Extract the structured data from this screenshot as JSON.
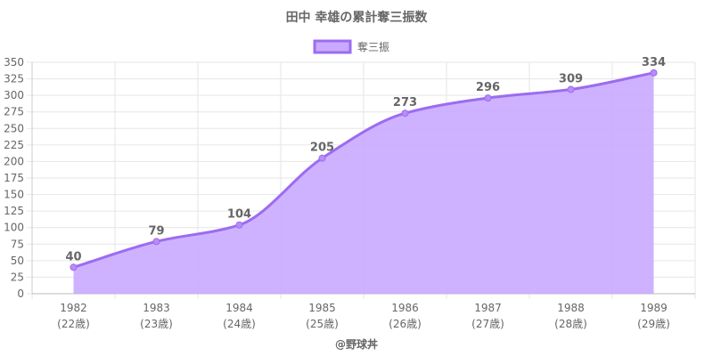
{
  "chart_data": {
    "type": "area",
    "title": "田中 幸雄の累計奪三振数",
    "legend": {
      "label": "奪三振",
      "placement": "top"
    },
    "categories": [
      "1982",
      "1983",
      "1984",
      "1985",
      "1986",
      "1987",
      "1988",
      "1989"
    ],
    "sublabels": [
      "(22歳)",
      "(23歳)",
      "(24歳)",
      "(25歳)",
      "(26歳)",
      "(27歳)",
      "(28歳)",
      "(29歳)"
    ],
    "series": [
      {
        "name": "奪三振",
        "values": [
          40,
          79,
          104,
          205,
          273,
          296,
          309,
          334
        ]
      }
    ],
    "ylim": [
      0,
      350
    ],
    "yticks": [
      0,
      25,
      50,
      75,
      100,
      125,
      150,
      175,
      200,
      225,
      250,
      275,
      300,
      325,
      350
    ],
    "grid": true,
    "colors": {
      "line": "#9b6cf0",
      "fill": "#c9aaff",
      "point": "#b98cf5",
      "grid": "#e6e6e6",
      "text": "#666666"
    },
    "credit": "@野球丼"
  }
}
